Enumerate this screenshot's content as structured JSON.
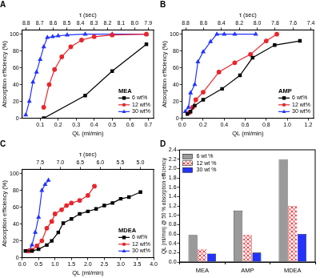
{
  "chart_data": [
    {
      "type": "line",
      "title": "A",
      "annotations": [
        "MEA"
      ],
      "x_label": "QL (ml/min)",
      "x2_label": "τ (sec)",
      "y_label": "Absorption efficiency (%)",
      "xlim": [
        0,
        0.73
      ],
      "xticks": [
        0.1,
        0.2,
        0.3,
        0.4,
        0.5,
        0.6,
        0.7
      ],
      "x2lim": [
        8.83,
        7.86
      ],
      "x2ticks": [
        8.8,
        8.7,
        8.6,
        8.5,
        8.4,
        8.3,
        8.2,
        8.1,
        {
          "value": 8,
          "label": "8.0"
        },
        7.9
      ],
      "ylim": [
        0,
        105
      ],
      "yticks": [
        0,
        20,
        40,
        60,
        80,
        100
      ],
      "grid": false,
      "legend": "lower right",
      "series": [
        {
          "name": "6 wt%",
          "color": "#000000",
          "marker": "square",
          "x": [
            0.12,
            0.35,
            0.5,
            0.69
          ],
          "values": [
            0,
            27,
            56,
            88
          ]
        },
        {
          "name": "12 wt%",
          "color": "#e8262b",
          "marker": "circle",
          "x": [
            0.12,
            0.15,
            0.18,
            0.22,
            0.27,
            0.33,
            0.4,
            0.5,
            0.69
          ],
          "values": [
            13,
            40,
            58,
            73,
            85,
            93,
            97,
            99,
            100
          ]
        },
        {
          "name": "30 wt%",
          "color": "#2233ff",
          "marker": "triangle",
          "x": [
            0.02,
            0.04,
            0.06,
            0.08,
            0.1,
            0.12,
            0.14,
            0.17,
            0.2,
            0.25,
            0.35,
            0.5,
            0.69
          ],
          "values": [
            4,
            20,
            43,
            55,
            70,
            85,
            96,
            97,
            98,
            99,
            100,
            100,
            100
          ]
        }
      ]
    },
    {
      "type": "line",
      "title": "B",
      "annotations": [
        "AMP"
      ],
      "x_label": "QL (ml/min)",
      "x2_label": "τ (sec)",
      "y_label": "Absorption efficiency (%)",
      "xlim": [
        0,
        1.25
      ],
      "xticks": [
        {
          "value": 0,
          "label": "0.0"
        },
        0.2,
        0.4,
        0.6,
        0.8,
        {
          "value": 1,
          "label": "1.0"
        },
        1.2
      ],
      "x2lim": [
        8.84,
        7.37
      ],
      "x2ticks": [
        8.8,
        8.6,
        8.4,
        8.2,
        {
          "value": 8,
          "label": "8.0"
        },
        7.8,
        7.6,
        7.4
      ],
      "ylim": [
        0,
        105
      ],
      "yticks": [
        0,
        20,
        40,
        60,
        80,
        100
      ],
      "grid": false,
      "legend": "lower right",
      "series": [
        {
          "name": "6 wt%",
          "color": "#000000",
          "marker": "square",
          "x": [
            0.05,
            0.08,
            0.12,
            0.2,
            0.38,
            0.55,
            0.67,
            0.88,
            1.12
          ],
          "values": [
            5,
            8,
            15,
            22,
            35,
            51,
            72,
            87,
            92
          ]
        },
        {
          "name": "12 wt%",
          "color": "#e8262b",
          "marker": "circle",
          "x": [
            0.07,
            0.1,
            0.13,
            0.2,
            0.35,
            0.5,
            0.65,
            0.8,
            0.9
          ],
          "values": [
            7,
            13,
            22,
            31,
            55,
            66,
            76,
            92,
            100
          ]
        },
        {
          "name": "30 wt%",
          "color": "#2233ff",
          "marker": "triangle",
          "x": [
            0.03,
            0.06,
            0.08,
            0.12,
            0.15,
            0.2,
            0.27,
            0.33,
            0.4,
            0.5,
            0.7
          ],
          "values": [
            8,
            13,
            30,
            40,
            67,
            79,
            91,
            100,
            100,
            100,
            100
          ]
        }
      ]
    },
    {
      "type": "line",
      "title": "C",
      "annotations": [
        "MDEA"
      ],
      "x_label": "QL (ml/min)",
      "x2_label": "τ (sec)",
      "y_label": "Absorption efficiency (%)",
      "xlim": [
        0,
        4
      ],
      "xticks": [
        {
          "value": 0,
          "label": "0.0"
        },
        0.5,
        {
          "value": 1,
          "label": "1.0"
        },
        1.5,
        {
          "value": 2,
          "label": "2.0"
        },
        2.5,
        {
          "value": 3,
          "label": "3.0"
        },
        3.5,
        {
          "value": 4,
          "label": "4.0"
        }
      ],
      "x2lim": [
        7.95,
        4.67
      ],
      "x2ticks": [
        7.5,
        {
          "value": 7,
          "label": "7.0"
        },
        6.5,
        {
          "value": 6,
          "label": "6.0"
        },
        5.5,
        {
          "value": 5,
          "label": "5.0"
        }
      ],
      "ylim": [
        0,
        105
      ],
      "yticks": [
        0,
        20,
        40,
        60,
        80,
        100
      ],
      "grid": false,
      "legend": "lower right",
      "series": [
        {
          "name": "6 wt%",
          "color": "#000000",
          "marker": "square",
          "x": [
            0.1,
            0.3,
            0.5,
            0.75,
            0.9,
            1.1,
            1.25,
            1.5,
            1.75,
            2.0,
            2.25,
            2.5,
            2.75,
            3.0,
            3.25,
            3.6
          ],
          "values": [
            8,
            8,
            10,
            15,
            20,
            30,
            41,
            46,
            52,
            55,
            58,
            62,
            65,
            70,
            72,
            78
          ]
        },
        {
          "name": "12 wt%",
          "color": "#e8262b",
          "marker": "circle",
          "x": [
            0.2,
            0.3,
            0.45,
            0.6,
            0.75,
            0.9,
            1.0,
            1.2,
            1.35,
            1.5,
            1.75,
            2.0,
            2.2
          ],
          "values": [
            8,
            9,
            14,
            20,
            35,
            43,
            52,
            57,
            62,
            65,
            68,
            74,
            85
          ]
        },
        {
          "name": "30 wt%",
          "color": "#2233ff",
          "marker": "triangle",
          "x": [
            0.2,
            0.3,
            0.4,
            0.5,
            0.6,
            0.7,
            0.8
          ],
          "values": [
            8,
            15,
            30,
            48,
            80,
            87,
            92
          ]
        }
      ]
    },
    {
      "type": "bar",
      "title": "D",
      "y_label": "QL (ml/min) @ 50 % absorption efficiency",
      "categories": [
        "MEA",
        "AMP",
        "MDEA"
      ],
      "ylim": [
        0,
        2.4
      ],
      "yticks": [
        {
          "value": 0,
          "label": "0.0"
        },
        0.2,
        0.4,
        0.6,
        0.8,
        {
          "value": 1,
          "label": "1.0"
        },
        1.2,
        1.4,
        1.6,
        1.8,
        {
          "value": 2,
          "label": "2.0"
        },
        2.2,
        2.4
      ],
      "grid": false,
      "legend": "upper left",
      "series": [
        {
          "name": "6 wt %",
          "color": "#9a9a9a",
          "values": [
            0.58,
            1.1,
            2.2
          ]
        },
        {
          "name": "12 wt %",
          "color": "#e8262b",
          "values": [
            0.28,
            0.58,
            1.2
          ]
        },
        {
          "name": "30 wt %",
          "color": "#2233ff",
          "values": [
            0.18,
            0.2,
            0.6
          ]
        }
      ]
    }
  ]
}
